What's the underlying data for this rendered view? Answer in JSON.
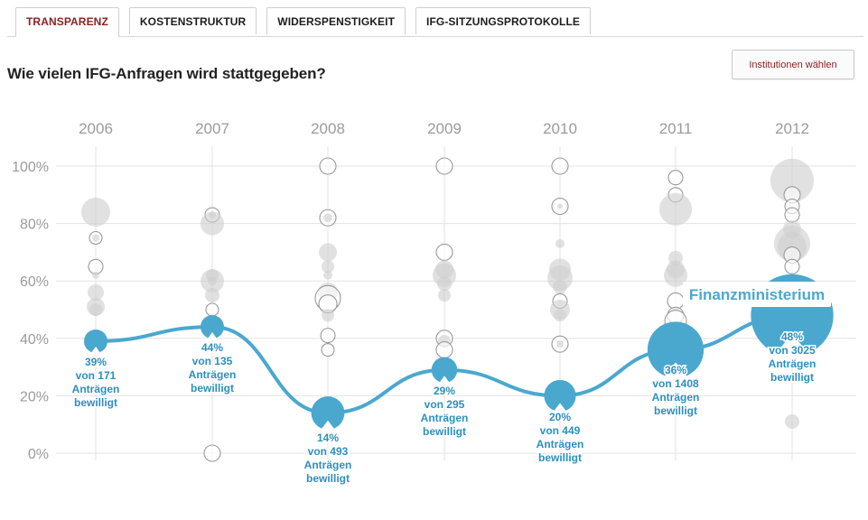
{
  "tabs": [
    {
      "label": "TRANSPARENZ",
      "active": true
    },
    {
      "label": "KOSTENSTRUKTUR",
      "active": false
    },
    {
      "label": "WIDERSPENSTIGKEIT",
      "active": false
    },
    {
      "label": "IFG-SITZUNGSPROTOKOLLE",
      "active": false
    }
  ],
  "title": "Wie vielen IFG-Anfragen wird stattgegeben?",
  "institutions_button": "Institutionen wählen",
  "colors": {
    "accent": "#4aa8cf",
    "accent_text": "#2c8fbf",
    "grey_bubble": "#cfcfcf",
    "grey_ring": "#9a9a9a",
    "grid": "#e3e3e3",
    "axis_text": "#9b9b9b",
    "tab_active": "#8c2121"
  },
  "chart_data": {
    "type": "scatter",
    "x": [
      "2006",
      "2007",
      "2008",
      "2009",
      "2010",
      "2011",
      "2012"
    ],
    "yticks": [
      "100%",
      "80%",
      "60%",
      "40%",
      "20%",
      "0%"
    ],
    "ylim": [
      0,
      100
    ],
    "highlight_label": "Finanzministerium",
    "series": [
      {
        "name": "Finanzministerium",
        "values": [
          39,
          44,
          14,
          29,
          20,
          36,
          48
        ],
        "counts": [
          171,
          135,
          493,
          295,
          449,
          1408,
          3025
        ],
        "labels": [
          [
            "39%",
            "von 171",
            "Anträgen",
            "bewilligt"
          ],
          [
            "44%",
            "von 135",
            "Anträgen",
            "bewilligt"
          ],
          [
            "14%",
            "von 493",
            "Anträgen",
            "bewilligt"
          ],
          [
            "29%",
            "von 295",
            "Anträgen",
            "bewilligt"
          ],
          [
            "20%",
            "von 449",
            "Anträgen",
            "bewilligt"
          ],
          [
            "36%",
            "von 1408",
            "Anträgen",
            "bewilligt"
          ],
          [
            "48%",
            "von 3025",
            "Anträgen",
            "bewilligt"
          ]
        ]
      }
    ],
    "other_institutions": [
      {
        "year": "2006",
        "points": [
          [
            84,
            16,
            "f"
          ],
          [
            75,
            7,
            "r"
          ],
          [
            75,
            4,
            "f"
          ],
          [
            65,
            8,
            "r"
          ],
          [
            62,
            4,
            "f"
          ],
          [
            56,
            9,
            "f"
          ],
          [
            51,
            10,
            "f"
          ],
          [
            50,
            7,
            "f"
          ],
          [
            41,
            7,
            "f"
          ]
        ]
      },
      {
        "year": "2007",
        "points": [
          [
            83,
            8,
            "r"
          ],
          [
            83,
            4,
            "f"
          ],
          [
            80,
            13,
            "f"
          ],
          [
            62,
            7,
            "f"
          ],
          [
            60,
            13,
            "f"
          ],
          [
            60,
            5,
            "f"
          ],
          [
            55,
            8,
            "f"
          ],
          [
            50,
            7,
            "r"
          ],
          [
            47,
            4,
            "f"
          ],
          [
            0,
            9,
            "r"
          ]
        ]
      },
      {
        "year": "2008",
        "points": [
          [
            100,
            9,
            "r"
          ],
          [
            82,
            9,
            "r"
          ],
          [
            82,
            5,
            "f"
          ],
          [
            70,
            10,
            "f"
          ],
          [
            65,
            7,
            "f"
          ],
          [
            62,
            5,
            "f"
          ],
          [
            56,
            11,
            "f"
          ],
          [
            54,
            14,
            "r"
          ],
          [
            52,
            10,
            "r"
          ],
          [
            48,
            7,
            "f"
          ],
          [
            41,
            8,
            "r"
          ],
          [
            36,
            7,
            "r"
          ]
        ]
      },
      {
        "year": "2009",
        "points": [
          [
            100,
            9,
            "r"
          ],
          [
            70,
            9,
            "r"
          ],
          [
            64,
            10,
            "f"
          ],
          [
            62,
            13,
            "f"
          ],
          [
            59,
            8,
            "f"
          ],
          [
            55,
            7,
            "f"
          ],
          [
            40,
            9,
            "r"
          ],
          [
            39,
            7,
            "f"
          ],
          [
            36,
            9,
            "r"
          ]
        ]
      },
      {
        "year": "2010",
        "points": [
          [
            100,
            9,
            "r"
          ],
          [
            86,
            9,
            "r"
          ],
          [
            86,
            3,
            "f"
          ],
          [
            73,
            5,
            "f"
          ],
          [
            64,
            12,
            "f"
          ],
          [
            61,
            14,
            "f"
          ],
          [
            58,
            8,
            "f"
          ],
          [
            53,
            8,
            "r"
          ],
          [
            50,
            11,
            "f"
          ],
          [
            48,
            7,
            "f"
          ],
          [
            38,
            9,
            "r"
          ],
          [
            38,
            4,
            "f"
          ]
        ]
      },
      {
        "year": "2011",
        "points": [
          [
            96,
            8,
            "r"
          ],
          [
            90,
            8,
            "r"
          ],
          [
            85,
            18,
            "f"
          ],
          [
            68,
            8,
            "f"
          ],
          [
            64,
            10,
            "f"
          ],
          [
            62,
            13,
            "f"
          ],
          [
            53,
            9,
            "r"
          ],
          [
            48,
            9,
            "r"
          ],
          [
            46,
            12,
            "r"
          ]
        ]
      },
      {
        "year": "2012",
        "points": [
          [
            95,
            24,
            "f"
          ],
          [
            90,
            9,
            "r"
          ],
          [
            86,
            8,
            "r"
          ],
          [
            83,
            8,
            "r"
          ],
          [
            78,
            10,
            "f"
          ],
          [
            73,
            20,
            "f"
          ],
          [
            72,
            16,
            "f"
          ],
          [
            69,
            9,
            "r"
          ],
          [
            65,
            8,
            "r"
          ],
          [
            11,
            8,
            "f"
          ]
        ]
      }
    ]
  }
}
